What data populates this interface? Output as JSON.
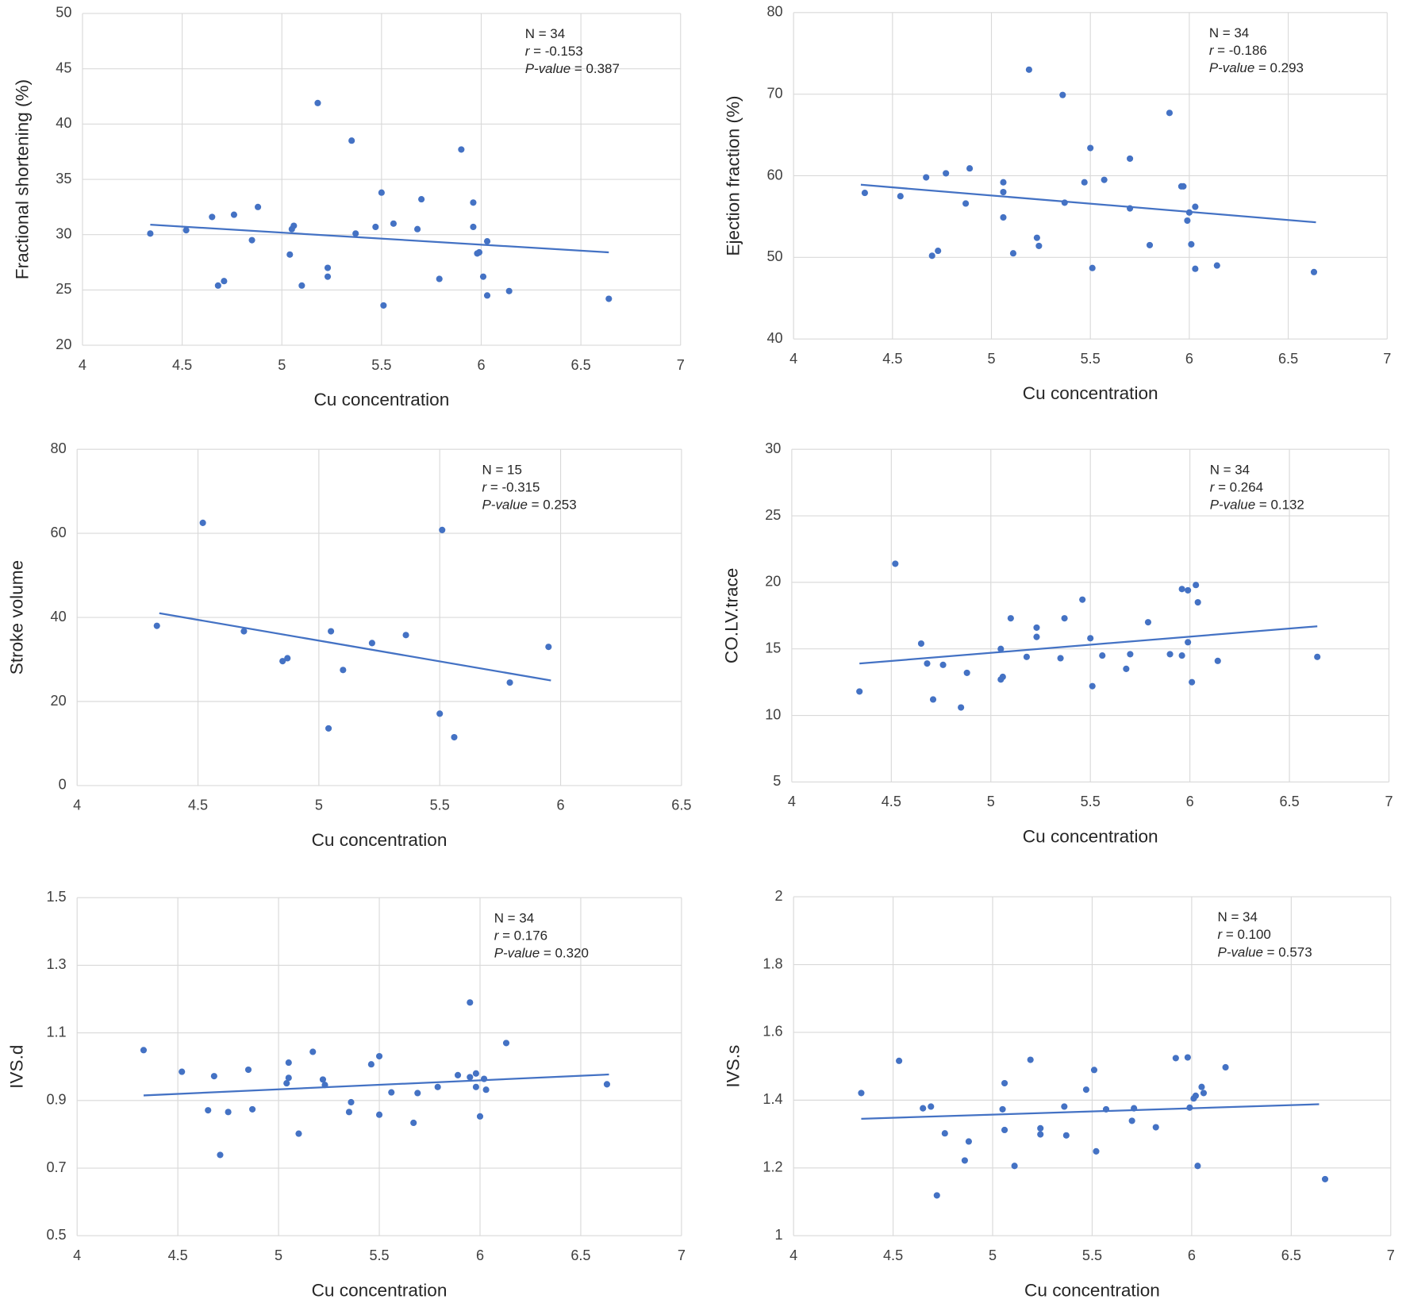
{
  "chart_data": [
    {
      "type": "scatter",
      "x_label": "Cu concentration",
      "y_label": "Fractional shortening (%)",
      "annotation": [
        {
          "text": "N = 34"
        },
        {
          "italic": "r",
          "text": " = -0.153"
        },
        {
          "italic": "P-value",
          "text": " = 0.387"
        }
      ],
      "xlim": [
        4,
        7
      ],
      "ylim": [
        20,
        50
      ],
      "xticks": [
        4,
        4.5,
        5,
        5.5,
        6,
        6.5,
        7
      ],
      "yticks": [
        20,
        25,
        30,
        35,
        40,
        45,
        50
      ],
      "grid": true,
      "color": "#4472c4",
      "x": [
        4.34,
        4.52,
        4.65,
        4.68,
        4.71,
        4.76,
        4.85,
        4.88,
        5.04,
        5.05,
        5.06,
        5.1,
        5.18,
        5.23,
        5.23,
        5.35,
        5.37,
        5.47,
        5.5,
        5.51,
        5.56,
        5.68,
        5.7,
        5.79,
        5.9,
        5.96,
        5.96,
        5.98,
        5.99,
        6.01,
        6.03,
        6.03,
        6.14,
        6.64
      ],
      "y": [
        30.1,
        30.4,
        31.6,
        25.4,
        25.8,
        31.8,
        29.5,
        32.5,
        28.2,
        30.5,
        30.8,
        25.4,
        41.9,
        27.0,
        26.2,
        38.5,
        30.1,
        30.7,
        33.8,
        23.6,
        31.0,
        30.5,
        33.2,
        26.0,
        37.7,
        32.9,
        30.7,
        28.3,
        28.4,
        26.2,
        29.4,
        24.5,
        24.9,
        24.2
      ],
      "trendline": {
        "x": [
          4.34,
          6.64
        ],
        "y": [
          30.9,
          28.4
        ]
      }
    },
    {
      "type": "scatter",
      "x_label": "Cu concentration",
      "y_label": "Ejection fraction (%)",
      "annotation": [
        {
          "text": "N = 34"
        },
        {
          "italic": "r",
          "text": " = -0.186"
        },
        {
          "italic": "P-value",
          "text": " = 0.293"
        }
      ],
      "xlim": [
        4,
        7
      ],
      "ylim": [
        40,
        80
      ],
      "xticks": [
        4,
        4.5,
        5,
        5.5,
        6,
        6.5,
        7
      ],
      "yticks": [
        40,
        50,
        60,
        70,
        80
      ],
      "grid": true,
      "color": "#4472c4",
      "x": [
        4.36,
        4.54,
        4.67,
        4.7,
        4.73,
        4.77,
        4.87,
        4.89,
        5.06,
        5.06,
        5.06,
        5.11,
        5.19,
        5.23,
        5.24,
        5.36,
        5.37,
        5.47,
        5.5,
        5.51,
        5.57,
        5.7,
        5.7,
        5.8,
        5.9,
        5.96,
        5.97,
        5.99,
        6.0,
        6.01,
        6.03,
        6.03,
        6.14,
        6.63
      ],
      "y": [
        57.9,
        57.5,
        59.8,
        50.2,
        50.8,
        60.3,
        56.6,
        60.9,
        54.9,
        58.0,
        59.2,
        50.5,
        73.0,
        52.4,
        51.4,
        69.9,
        56.7,
        59.2,
        63.4,
        48.7,
        59.5,
        56.0,
        62.1,
        51.5,
        67.7,
        58.7,
        58.7,
        54.5,
        55.5,
        51.6,
        56.2,
        48.6,
        49.0,
        48.2
      ],
      "trendline": {
        "x": [
          4.34,
          6.64
        ],
        "y": [
          58.9,
          54.3
        ]
      }
    },
    {
      "type": "scatter",
      "x_label": "Cu concentration",
      "y_label": "Stroke volume",
      "annotation": [
        {
          "text": "N = 15"
        },
        {
          "italic": "r",
          "text": " = -0.315"
        },
        {
          "italic": "P-value",
          "text": " = 0.253"
        }
      ],
      "xlim": [
        4,
        6.5
      ],
      "ylim": [
        0,
        80
      ],
      "xticks": [
        4,
        4.5,
        5,
        5.5,
        6,
        6.5
      ],
      "yticks": [
        0,
        20,
        40,
        60,
        80
      ],
      "grid": true,
      "color": "#4472c4",
      "x": [
        4.33,
        4.52,
        4.69,
        4.85,
        4.87,
        5.05,
        5.04,
        5.1,
        5.22,
        5.36,
        5.51,
        5.5,
        5.56,
        5.79,
        5.95
      ],
      "y": [
        38.0,
        62.5,
        36.7,
        29.6,
        30.3,
        36.7,
        13.6,
        27.5,
        33.9,
        35.8,
        60.8,
        17.1,
        11.5,
        24.5,
        33.0
      ],
      "trendline": {
        "x": [
          4.34,
          5.96
        ],
        "y": [
          41.0,
          25.0
        ]
      }
    },
    {
      "type": "scatter",
      "x_label": "Cu concentration",
      "y_label": "CO.LV.trace",
      "annotation": [
        {
          "text": "N = 34"
        },
        {
          "italic": "r",
          "text": " = 0.264"
        },
        {
          "italic": "P-value",
          "text": " = 0.132"
        }
      ],
      "xlim": [
        4,
        7
      ],
      "ylim": [
        5,
        30
      ],
      "xticks": [
        4,
        4.5,
        5,
        5.5,
        6,
        6.5,
        7
      ],
      "yticks": [
        5,
        10,
        15,
        20,
        25,
        30
      ],
      "grid": true,
      "color": "#4472c4",
      "x": [
        4.34,
        4.52,
        4.65,
        4.68,
        4.71,
        4.76,
        4.85,
        4.88,
        5.05,
        5.05,
        5.06,
        5.1,
        5.18,
        5.23,
        5.23,
        5.35,
        5.37,
        5.46,
        5.5,
        5.51,
        5.56,
        5.68,
        5.7,
        5.79,
        5.9,
        5.96,
        5.96,
        5.99,
        5.99,
        6.01,
        6.03,
        6.04,
        6.14,
        6.64
      ],
      "y": [
        11.8,
        21.4,
        15.4,
        13.9,
        11.2,
        13.8,
        10.6,
        13.2,
        15.0,
        12.7,
        12.9,
        17.3,
        14.4,
        16.6,
        15.9,
        14.3,
        17.3,
        18.7,
        15.8,
        12.2,
        14.5,
        13.5,
        14.6,
        17.0,
        14.6,
        19.5,
        14.5,
        19.4,
        15.5,
        12.5,
        19.8,
        18.5,
        14.1,
        14.4
      ],
      "trendline": {
        "x": [
          4.34,
          6.64
        ],
        "y": [
          13.9,
          16.7
        ]
      }
    },
    {
      "type": "scatter",
      "x_label": "Cu concentration",
      "y_label": "IVS.d",
      "annotation": [
        {
          "text": "N = 34"
        },
        {
          "italic": "r",
          "text": " = 0.176"
        },
        {
          "italic": "P-value",
          "text": " = 0.320"
        }
      ],
      "xlim": [
        4,
        7
      ],
      "ylim": [
        0.5,
        1.5
      ],
      "xticks": [
        4,
        4.5,
        5,
        5.5,
        6,
        6.5,
        7
      ],
      "yticks": [
        0.5,
        0.7,
        0.9,
        1.1,
        1.3,
        1.5
      ],
      "grid": true,
      "color": "#4472c4",
      "x": [
        4.33,
        4.52,
        4.65,
        4.68,
        4.71,
        4.75,
        4.85,
        4.87,
        5.04,
        5.05,
        5.05,
        5.1,
        5.17,
        5.22,
        5.23,
        5.35,
        5.36,
        5.46,
        5.5,
        5.5,
        5.56,
        5.67,
        5.69,
        5.79,
        5.89,
        5.95,
        5.95,
        5.98,
        5.98,
        6.0,
        6.02,
        6.03,
        6.13,
        6.63
      ],
      "y": [
        1.049,
        0.985,
        0.871,
        0.972,
        0.739,
        0.866,
        0.991,
        0.874,
        0.951,
        0.967,
        1.012,
        0.802,
        1.044,
        0.962,
        0.946,
        0.866,
        0.895,
        1.007,
        1.031,
        0.858,
        0.924,
        0.834,
        0.922,
        0.94,
        0.975,
        1.19,
        0.969,
        0.98,
        0.94,
        0.853,
        0.964,
        0.932,
        1.07,
        0.948
      ],
      "trendline": {
        "x": [
          4.33,
          6.64
        ],
        "y": [
          0.915,
          0.977
        ]
      }
    },
    {
      "type": "scatter",
      "x_label": "Cu concentration",
      "y_label": "IVS.s",
      "annotation": [
        {
          "text": "N = 34"
        },
        {
          "italic": "r",
          "text": " = 0.100"
        },
        {
          "italic": "P-value",
          "text": " = 0.573"
        }
      ],
      "xlim": [
        4,
        7
      ],
      "ylim": [
        1,
        2
      ],
      "xticks": [
        4,
        4.5,
        5,
        5.5,
        6,
        6.5,
        7
      ],
      "yticks": [
        1,
        1.2,
        1.4,
        1.6,
        1.8,
        2
      ],
      "grid": true,
      "color": "#4472c4",
      "x": [
        4.34,
        4.53,
        4.65,
        4.69,
        4.72,
        4.76,
        4.86,
        4.88,
        5.05,
        5.06,
        5.06,
        5.11,
        5.19,
        5.24,
        5.24,
        5.36,
        5.37,
        5.47,
        5.51,
        5.52,
        5.57,
        5.7,
        5.71,
        5.82,
        5.92,
        5.98,
        5.99,
        6.01,
        6.02,
        6.03,
        6.05,
        6.06,
        6.17,
        6.67
      ],
      "y": [
        1.421,
        1.516,
        1.376,
        1.381,
        1.119,
        1.302,
        1.222,
        1.278,
        1.373,
        1.45,
        1.312,
        1.206,
        1.519,
        1.317,
        1.299,
        1.381,
        1.296,
        1.431,
        1.489,
        1.249,
        1.373,
        1.339,
        1.376,
        1.32,
        1.524,
        1.526,
        1.378,
        1.405,
        1.413,
        1.206,
        1.439,
        1.421,
        1.497,
        1.167
      ],
      "trendline": {
        "x": [
          4.34,
          6.64
        ],
        "y": [
          1.345,
          1.388
        ]
      }
    }
  ]
}
